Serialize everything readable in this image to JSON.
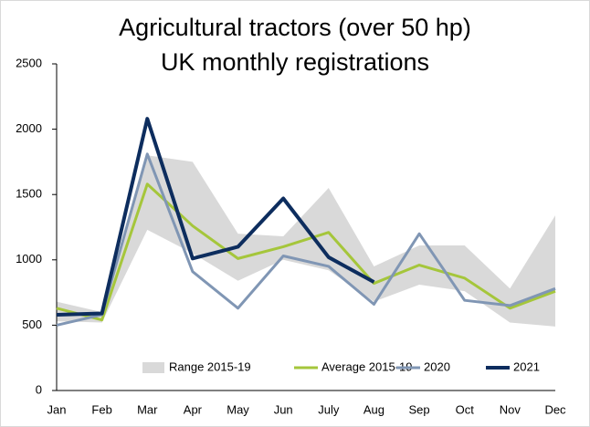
{
  "chart_data": {
    "type": "line",
    "title": [
      "Agricultural tractors (over 50 hp)",
      "UK monthly registrations"
    ],
    "categories": [
      "Jan",
      "Feb",
      "Mar",
      "Apr",
      "May",
      "Jun",
      "July",
      "Aug",
      "Sep",
      "Oct",
      "Nov",
      "Dec"
    ],
    "range": {
      "name": "Range 2015-19",
      "color": "#d9d9d9",
      "low": [
        530,
        520,
        1230,
        1050,
        840,
        1000,
        920,
        680,
        810,
        760,
        520,
        490
      ],
      "high": [
        680,
        600,
        1800,
        1750,
        1200,
        1180,
        1550,
        950,
        1110,
        1110,
        780,
        1340
      ]
    },
    "series": [
      {
        "name": "Average 2015-19",
        "color": "#a5c63b",
        "width": 3,
        "values": [
          630,
          540,
          1580,
          1260,
          1010,
          1100,
          1210,
          820,
          960,
          860,
          630,
          760
        ]
      },
      {
        "name": "2020",
        "color": "#8096b4",
        "width": 3,
        "values": [
          500,
          580,
          1810,
          910,
          630,
          1030,
          950,
          660,
          1200,
          690,
          650,
          780
        ]
      },
      {
        "name": "2021",
        "color": "#0d2d5e",
        "width": 4,
        "values": [
          580,
          590,
          2080,
          1010,
          1100,
          1470,
          1020,
          830,
          null,
          null,
          null,
          null
        ]
      }
    ],
    "ylim": [
      0,
      2500
    ],
    "yticks": [
      0,
      500,
      1000,
      1500,
      2000,
      2500
    ]
  }
}
